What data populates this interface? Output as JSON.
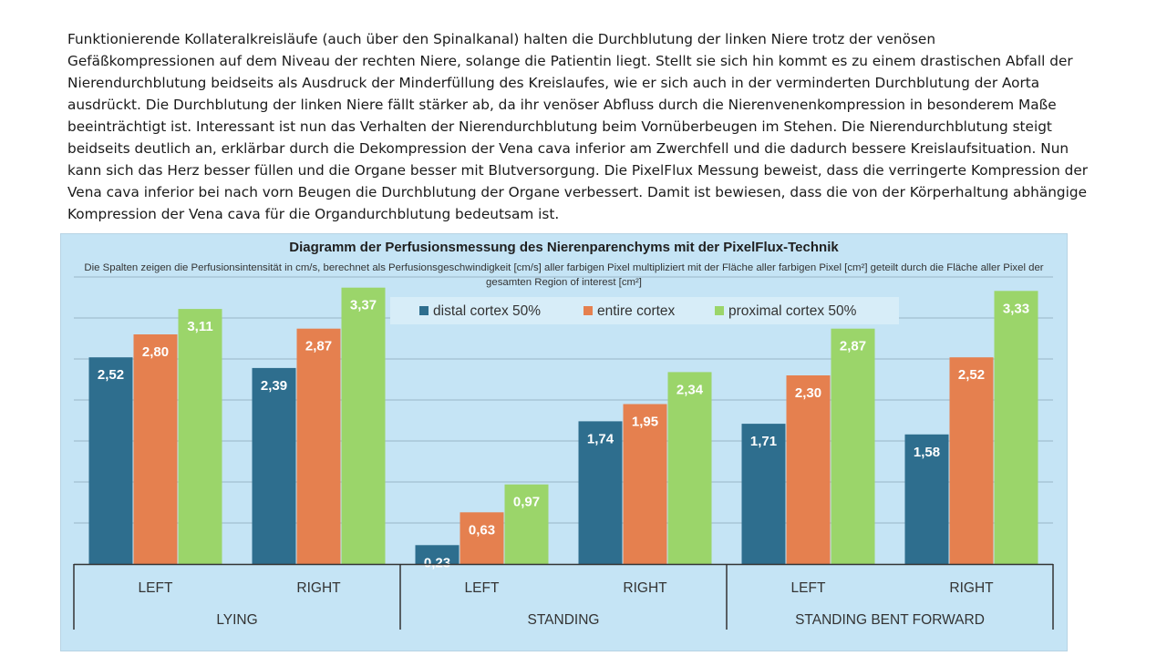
{
  "paragraph": {
    "lines": [
      "Funktionierende Kollateralkreisläufe (auch über den Spinalkanal) halten die Durchblutung der linken Niere trotz der venösen",
      "Gefäßkompressionen auf dem Niveau der rechten Niere, solange die Patientin liegt. Stellt sie sich hin kommt es zu einem drastischen Abfall der",
      "Nierendurchblutung beidseits als Ausdruck der Minderfüllung des Kreislaufes, wie er sich auch in der verminderten Durchblutung der Aorta",
      "ausdrückt. Die Durchblutung der linken Niere fällt stärker ab, da ihr venöser Abfluss durch die Nierenvenenkompression in besonderem Maße",
      "beeinträchtigt ist. Interessant ist nun das Verhalten der Nierendurchblutung beim Vornüberbeugen im Stehen. Die Nierendurchblutung steigt",
      "beidseits deutlich an, erklärbar durch die Dekompression der Vena cava inferior am Zwerchfell und die dadurch bessere Kreislaufsituation. Nun",
      "kann sich das Herz besser füllen und die Organe besser mit Blutversorgung. Die PixelFlux Messung beweist, dass die verringerte Kompression der",
      "Vena cava inferior bei nach vorn Beugen die Durchblutung der Organe verbessert. Damit ist bewiesen, dass die von der Körperhaltung abhängige",
      "Kompression der Vena cava für die Organdurchblutung bedeutsam ist."
    ]
  },
  "chart_data": {
    "type": "bar",
    "title": "Diagramm der Perfusionsmessung des Nierenparenchyms mit der PixelFlux-Technik",
    "subtitle": "Die Spalten zeigen die Perfusionsintensität in cm/s, berechnet als Perfusionsgeschwindigkeit [cm/s] aller farbigen Pixel multipliziert mit der Fläche aller farbigen Pixel [cm²] geteilt durch die Fläche aller Pixel der gesamten Region of interest [cm²]",
    "categories": [
      "LEFT",
      "RIGHT",
      "LEFT",
      "RIGHT",
      "LEFT",
      "RIGHT"
    ],
    "groups": [
      {
        "label": "LYING",
        "span": 2
      },
      {
        "label": "STANDING",
        "span": 2
      },
      {
        "label": "STANDING BENT FORWARD",
        "span": 2
      }
    ],
    "series": [
      {
        "name": "distal cortex 50%",
        "color": "#2e6e8e",
        "values": [
          2.52,
          2.39,
          0.23,
          1.74,
          1.71,
          1.58
        ],
        "labels": [
          "2,52",
          "2,39",
          "0,23",
          "1,74",
          "1,71",
          "1,58"
        ]
      },
      {
        "name": "entire cortex",
        "color": "#e5804f",
        "values": [
          2.8,
          2.87,
          0.63,
          1.95,
          2.3,
          2.52
        ],
        "labels": [
          "2,80",
          "2,87",
          "0,63",
          "1,95",
          "2,30",
          "2,52"
        ]
      },
      {
        "name": "proximal cortex 50%",
        "color": "#9bd56a",
        "values": [
          3.11,
          3.37,
          0.97,
          2.34,
          2.87,
          3.33
        ],
        "labels": [
          "3,11",
          "3,37",
          "0,97",
          "2,34",
          "2,87",
          "3,33"
        ]
      }
    ],
    "ylim": [
      0,
      3.5
    ],
    "grid": true,
    "legend_position": "top",
    "colors": {
      "background": "#c5e4f5",
      "gridline": "#8aa7b9",
      "axis": "#333333"
    }
  }
}
